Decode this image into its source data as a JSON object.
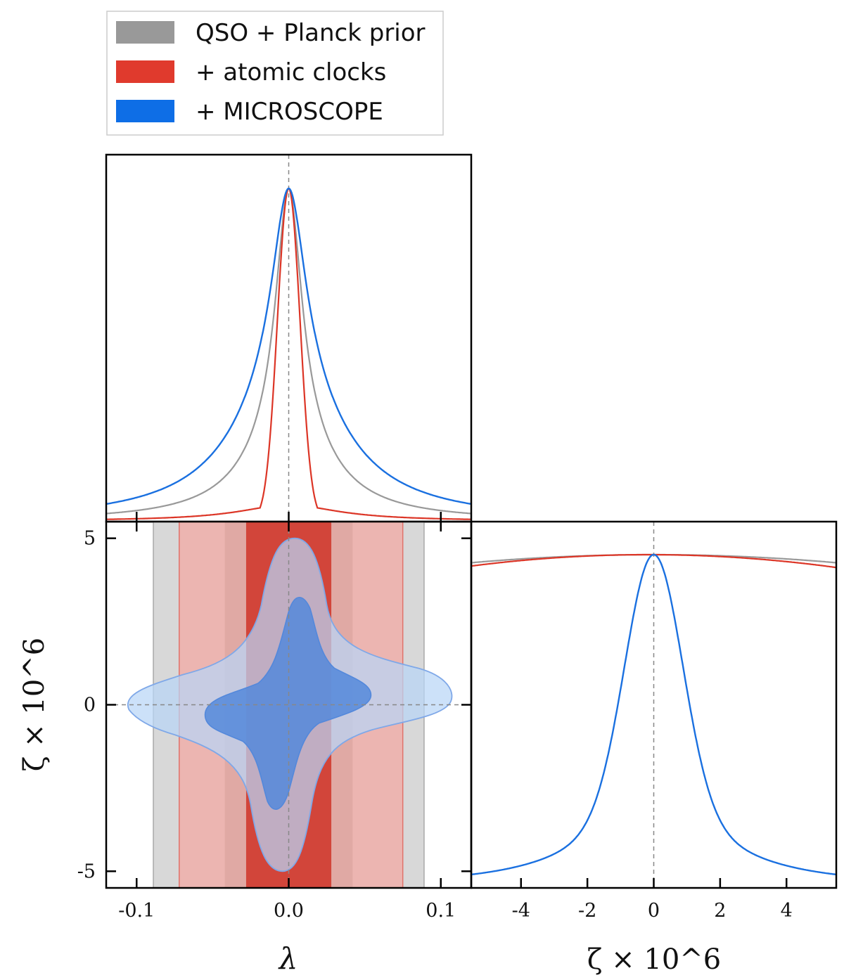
{
  "legend": {
    "entries": [
      {
        "label": "QSO + Planck prior",
        "color": "#999999"
      },
      {
        "label": "+ atomic clocks",
        "color": "#e03a2d"
      },
      {
        "label": "+ MICROSCOPE",
        "color": "#0e6ee6"
      }
    ]
  },
  "colors": {
    "grey_line": "#999999",
    "red_line": "#dc3526",
    "blue_line": "#1a70e0",
    "grey_band": "#d8d8d8",
    "red_band_1sigma": "#d2453a",
    "red_band_2sigma": "#ecb5b1",
    "blue_fill_1sigma": "#5360a6",
    "blue_fill_2sigma": "#a895b6",
    "blue_light": "#b9d6f7",
    "blue_mid": "#5388db",
    "ref_line": "#888888"
  },
  "chart_data": [
    {
      "type": "line",
      "panel": "marginal lambda",
      "x_range": [
        -0.12,
        0.12
      ],
      "reference_x": 0.0,
      "series": [
        {
          "name": "QSO + Planck prior",
          "center": 0.0,
          "core_halfwidth": 0.008,
          "peak": 1.0
        },
        {
          "name": "+ atomic clocks",
          "center": 0.0,
          "core_halfwidth": 0.004,
          "peak": 1.0
        },
        {
          "name": "+ MICROSCOPE",
          "center": 0.0,
          "core_halfwidth": 0.016,
          "peak": 1.0
        }
      ]
    },
    {
      "type": "area",
      "panel": "joint lambda vs zeta",
      "x_range": [
        -0.12,
        0.12
      ],
      "y_range": [
        -5.5,
        5.5
      ],
      "x_ticks": [
        "-0.1",
        "0.0",
        "0.1"
      ],
      "x_tick_values": [
        -0.1,
        0.0,
        0.1
      ],
      "y_ticks": [
        "5",
        "0",
        "-5"
      ],
      "y_tick_values": [
        5,
        0,
        -5
      ],
      "xlabel": "λ",
      "ylabel": "ζ × 10^6",
      "bands": [
        {
          "name": "QSO + Planck prior 95%",
          "lambda": [
            -0.089,
            0.089
          ]
        },
        {
          "name": "QSO + Planck prior 68%",
          "lambda": [
            -0.042,
            0.042
          ]
        },
        {
          "name": "+ atomic clocks 95%",
          "lambda": [
            -0.072,
            0.075
          ]
        },
        {
          "name": "+ atomic clocks 68%",
          "lambda": [
            -0.028,
            0.028
          ]
        }
      ],
      "contours": [
        {
          "name": "+ MICROSCOPE 95%",
          "lambda_extent": [
            -0.105,
            0.108
          ],
          "zeta_extent": [
            -5.0,
            5.0
          ]
        },
        {
          "name": "+ MICROSCOPE 68%",
          "lambda_extent": [
            -0.055,
            0.055
          ],
          "zeta_extent": [
            -3.3,
            3.3
          ]
        }
      ]
    },
    {
      "type": "line",
      "panel": "marginal zeta",
      "x_range": [
        -5.5,
        5.5
      ],
      "x_ticks": [
        "-4",
        "-2",
        "0",
        "2",
        "4"
      ],
      "x_tick_values": [
        -4,
        -2,
        0,
        2,
        4
      ],
      "xlabel": "ζ × 10^6",
      "reference_x": 0.0,
      "series": [
        {
          "name": "QSO + Planck prior",
          "shape": "flat",
          "level": 0.99
        },
        {
          "name": "+ atomic clocks",
          "shape": "flat",
          "level": 0.99
        },
        {
          "name": "+ MICROSCOPE",
          "center": 0.0,
          "halfwidth": 0.9,
          "peak": 1.0
        }
      ]
    }
  ]
}
